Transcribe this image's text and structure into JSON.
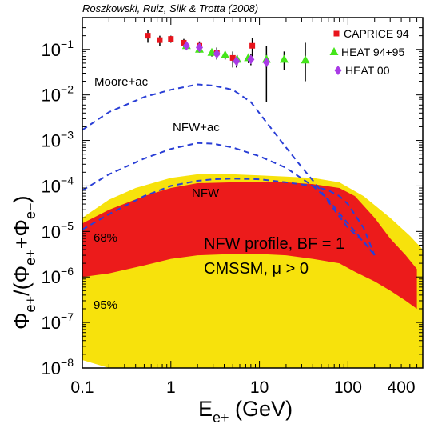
{
  "chart_data": {
    "type": "scatter",
    "title": "Roszkowski, Ruiz, Silk & Trotta (2008)",
    "xlabel": "E_{e+} (GeV)",
    "ylabel": "Φ_{e+}/(Φ_{e+}+Φ_{e−})",
    "xscale": "log",
    "yscale": "log",
    "xlim": [
      0.1,
      700
    ],
    "ylim": [
      1e-08,
      0.5
    ],
    "x_ticks": [
      {
        "value": 0.1,
        "label": "0.1"
      },
      {
        "value": 1,
        "label": "1"
      },
      {
        "value": 10,
        "label": "10"
      },
      {
        "value": 100,
        "label": "100"
      },
      {
        "value": 400,
        "label": "400"
      }
    ],
    "y_ticks": [
      {
        "value": 1e-08,
        "base": "10",
        "exp": "−8"
      },
      {
        "value": 1e-07,
        "base": "10",
        "exp": "−7"
      },
      {
        "value": 1e-06,
        "base": "10",
        "exp": "−6"
      },
      {
        "value": 1e-05,
        "base": "10",
        "exp": "−5"
      },
      {
        "value": 0.0001,
        "base": "10",
        "exp": "−4"
      },
      {
        "value": 0.001,
        "base": "10",
        "exp": "−3"
      },
      {
        "value": 0.01,
        "base": "10",
        "exp": "−2"
      },
      {
        "value": 0.1,
        "base": "10",
        "exp": "−1"
      }
    ],
    "series": [
      {
        "name": "CAPRICE 94",
        "marker": "square",
        "color": "#e8141c",
        "points": [
          {
            "x": 0.55,
            "y": 0.2,
            "ylo": 0.14,
            "yhi": 0.27
          },
          {
            "x": 0.75,
            "y": 0.16,
            "ylo": 0.12,
            "yhi": 0.2
          },
          {
            "x": 1.0,
            "y": 0.17,
            "ylo": 0.14,
            "yhi": 0.2
          },
          {
            "x": 1.4,
            "y": 0.14,
            "ylo": 0.11,
            "yhi": 0.17
          },
          {
            "x": 2.1,
            "y": 0.12,
            "ylo": 0.09,
            "yhi": 0.15
          },
          {
            "x": 3.3,
            "y": 0.085,
            "ylo": 0.06,
            "yhi": 0.11
          },
          {
            "x": 5.0,
            "y": 0.065,
            "ylo": 0.04,
            "yhi": 0.09
          },
          {
            "x": 8.3,
            "y": 0.12,
            "ylo": 0.07,
            "yhi": 0.18
          }
        ]
      },
      {
        "name": "HEAT 94+95",
        "marker": "triangle",
        "color": "#44e51a",
        "points": [
          {
            "x": 1.5,
            "y": 0.12,
            "ylo": 0.1,
            "yhi": 0.14
          },
          {
            "x": 2.1,
            "y": 0.1,
            "ylo": 0.085,
            "yhi": 0.12
          },
          {
            "x": 2.9,
            "y": 0.085,
            "ylo": 0.07,
            "yhi": 0.1
          },
          {
            "x": 4.1,
            "y": 0.075,
            "ylo": 0.06,
            "yhi": 0.09
          },
          {
            "x": 5.6,
            "y": 0.06,
            "ylo": 0.045,
            "yhi": 0.075
          },
          {
            "x": 7.5,
            "y": 0.065,
            "ylo": 0.05,
            "yhi": 0.08
          },
          {
            "x": 12,
            "y": 0.06,
            "ylo": 0.04,
            "yhi": 0.08
          },
          {
            "x": 19,
            "y": 0.06,
            "ylo": 0.035,
            "yhi": 0.09
          },
          {
            "x": 33,
            "y": 0.058,
            "ylo": 0.02,
            "yhi": 0.14
          }
        ]
      },
      {
        "name": "HEAT 00",
        "marker": "diamond",
        "color": "#a93be6",
        "points": [
          {
            "x": 1.5,
            "y": 0.12,
            "ylo": 0.1,
            "yhi": 0.14
          },
          {
            "x": 2.1,
            "y": 0.11,
            "ylo": 0.09,
            "yhi": 0.13
          },
          {
            "x": 3.3,
            "y": 0.08,
            "ylo": 0.06,
            "yhi": 0.1
          },
          {
            "x": 5.5,
            "y": 0.055,
            "ylo": 0.04,
            "yhi": 0.07
          },
          {
            "x": 8.0,
            "y": 0.06,
            "ylo": 0.045,
            "yhi": 0.08
          },
          {
            "x": 12,
            "y": 0.052,
            "ylo": 0.007,
            "yhi": 0.12
          }
        ]
      }
    ],
    "curves": [
      {
        "label": "Moore+ac",
        "color": "#2a3fd6",
        "points": [
          [
            0.1,
            0.0017
          ],
          [
            0.2,
            0.0042
          ],
          [
            0.5,
            0.009
          ],
          [
            1,
            0.013
          ],
          [
            2,
            0.017
          ],
          [
            3,
            0.016
          ],
          [
            5,
            0.013
          ],
          [
            8,
            0.007
          ],
          [
            12,
            0.0025
          ],
          [
            20,
            0.0007
          ],
          [
            30,
            0.00026
          ],
          [
            45,
            0.0001
          ],
          [
            70,
            3e-05
          ],
          [
            100,
            1.2e-05
          ],
          [
            150,
            6e-06
          ],
          [
            200,
            3e-06
          ]
        ]
      },
      {
        "label": "NFW+ac",
        "color": "#2a3fd6",
        "points": [
          [
            0.1,
            8e-05
          ],
          [
            0.2,
            0.00018
          ],
          [
            0.5,
            0.0004
          ],
          [
            1,
            0.00065
          ],
          [
            2,
            0.00088
          ],
          [
            3,
            0.00085
          ],
          [
            5,
            0.0007
          ],
          [
            10,
            0.00045
          ],
          [
            20,
            0.00025
          ],
          [
            40,
            0.0001
          ],
          [
            60,
            5e-05
          ],
          [
            80,
            2.5e-05
          ],
          [
            100,
            1.5e-05
          ],
          [
            150,
            6e-06
          ],
          [
            200,
            3e-06
          ]
        ]
      },
      {
        "label": "NFW",
        "color": "#2a3fd6",
        "points": [
          [
            0.1,
            1.1e-05
          ],
          [
            0.2,
            2.4e-05
          ],
          [
            0.5,
            6e-05
          ],
          [
            1,
            0.0001
          ],
          [
            2,
            0.00013
          ],
          [
            3,
            0.00014
          ],
          [
            5,
            0.000145
          ],
          [
            10,
            0.00014
          ],
          [
            20,
            0.00012
          ],
          [
            40,
            0.0001
          ],
          [
            60,
            8e-05
          ],
          [
            80,
            6e-05
          ],
          [
            100,
            4e-05
          ],
          [
            150,
            1.2e-05
          ],
          [
            200,
            3e-06
          ]
        ]
      }
    ],
    "bands": [
      {
        "label": "95%",
        "color": "#f7e20c",
        "upper": [
          [
            0.1,
            2e-05
          ],
          [
            0.2,
            5e-05
          ],
          [
            0.4,
            9e-05
          ],
          [
            1,
            0.00015
          ],
          [
            2,
            0.00018
          ],
          [
            5,
            0.00018
          ],
          [
            10,
            0.00017
          ],
          [
            20,
            0.00016
          ],
          [
            40,
            0.00015
          ],
          [
            80,
            0.00012
          ],
          [
            150,
            6e-05
          ],
          [
            300,
            2e-05
          ],
          [
            500,
            8e-06
          ],
          [
            700,
            4e-06
          ]
        ],
        "lower": [
          [
            0.1,
            1.5e-08
          ],
          [
            0.2,
            1e-08
          ],
          [
            0.5,
            1e-08
          ],
          [
            1,
            1e-08
          ],
          [
            3,
            1e-08
          ],
          [
            6,
            1e-08
          ],
          [
            10,
            1e-08
          ],
          [
            30,
            1e-08
          ],
          [
            60,
            1e-08
          ],
          [
            100,
            1e-08
          ],
          [
            200,
            1e-08
          ],
          [
            400,
            1e-08
          ],
          [
            700,
            1e-08
          ]
        ]
      },
      {
        "label": "68%",
        "color": "#ec1b1b",
        "upper": [
          [
            0.1,
            1.5e-05
          ],
          [
            0.2,
            3e-05
          ],
          [
            0.5,
            6e-05
          ],
          [
            1,
            9e-05
          ],
          [
            2,
            0.000115
          ],
          [
            5,
            0.00012
          ],
          [
            10,
            0.00012
          ],
          [
            20,
            0.00012
          ],
          [
            40,
            0.00011
          ],
          [
            80,
            9e-05
          ],
          [
            120,
            6e-05
          ],
          [
            200,
            2e-05
          ],
          [
            300,
            7e-06
          ],
          [
            450,
            3e-06
          ],
          [
            600,
            1.5e-06
          ]
        ],
        "lower": [
          [
            0.1,
            1e-06
          ],
          [
            0.2,
            1.2e-06
          ],
          [
            0.5,
            1.8e-06
          ],
          [
            1,
            2.5e-06
          ],
          [
            2,
            3e-06
          ],
          [
            5,
            3.2e-06
          ],
          [
            10,
            3.2e-06
          ],
          [
            20,
            3e-06
          ],
          [
            40,
            2.5e-06
          ],
          [
            80,
            2e-06
          ],
          [
            120,
            1.3e-06
          ],
          [
            200,
            8e-07
          ],
          [
            300,
            5e-07
          ],
          [
            450,
            3e-07
          ],
          [
            600,
            2e-07
          ]
        ]
      }
    ],
    "legend_position": "top-right",
    "annotations": [
      "NFW profile, BF = 1",
      "CMSSM, μ > 0"
    ]
  }
}
